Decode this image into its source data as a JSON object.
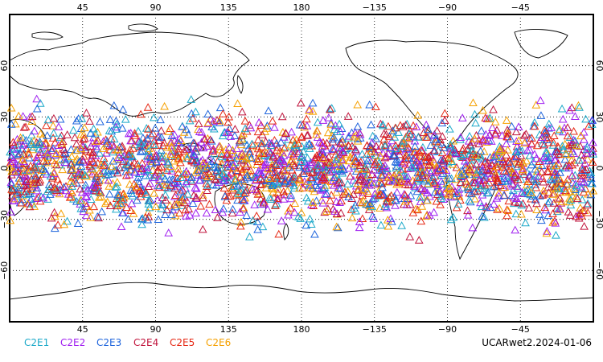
{
  "map": {
    "projection": "cylindrical equidistant",
    "longitude_range": [
      0,
      360
    ],
    "latitude_range": [
      -90,
      90
    ],
    "grid": "dotted",
    "top_axis_labels": [
      "45",
      "90",
      "135",
      "180",
      "−135",
      "−90",
      "−45"
    ],
    "bottom_axis_labels": [
      "45",
      "90",
      "135",
      "180",
      "−135",
      "−90",
      "−45"
    ],
    "left_axis_labels": [
      "60",
      "30",
      "0",
      "−30",
      "−60"
    ],
    "right_axis_labels": [
      "60",
      "30",
      "0",
      "−30",
      "−60"
    ],
    "label_longitudes": [
      45,
      90,
      135,
      180,
      225,
      270,
      315
    ],
    "label_latitudes": [
      60,
      30,
      0,
      -30,
      -60
    ]
  },
  "legend": {
    "items": [
      {
        "label": "C2E1",
        "color": "#1ca9c9"
      },
      {
        "label": "C2E2",
        "color": "#a020f0"
      },
      {
        "label": "C2E3",
        "color": "#1e64dc"
      },
      {
        "label": "C2E4",
        "color": "#c0143c"
      },
      {
        "label": "C2E5",
        "color": "#e62814"
      },
      {
        "label": "C2E6",
        "color": "#f5a000"
      }
    ]
  },
  "product_label": "UCARwet2.2024-01-06",
  "observations": {
    "marker": "triangle",
    "latitude_band": [
      -45,
      45
    ]
  }
}
